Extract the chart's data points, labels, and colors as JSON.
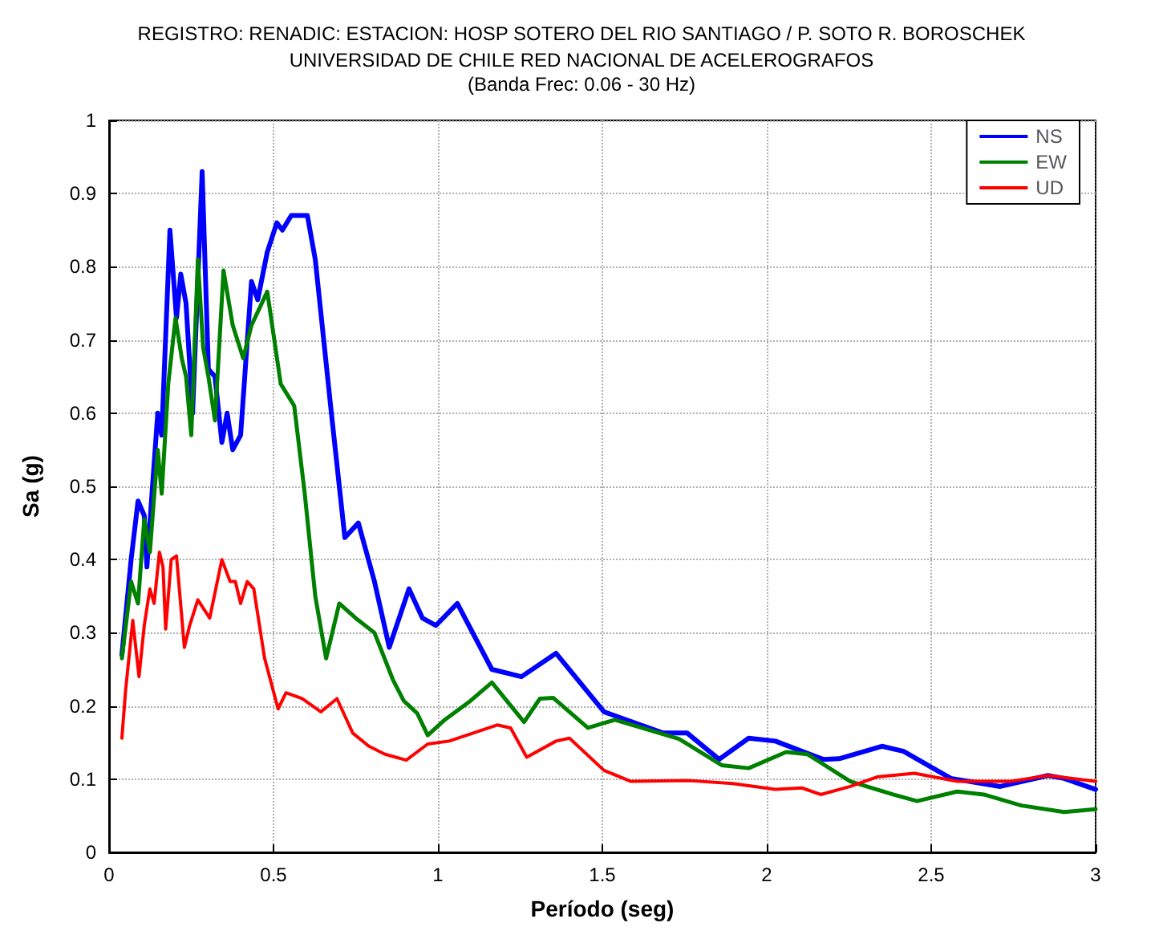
{
  "chart_data": {
    "type": "line",
    "title": "REGISTRO: RENADIC: ESTACION: HOSP SOTERO DEL RIO SANTIAGO / P. SOTO R. BOROSCHEK",
    "subtitle": "UNIVERSIDAD DE CHILE RED NACIONAL DE ACELEROGRAFOS\n(Banda Frec: 0.06 - 30 Hz)",
    "xlabel": "Período (seg)",
    "ylabel": "Sa (g)",
    "xlim": [
      0,
      3
    ],
    "xticks": [
      0,
      0.5,
      1,
      1.5,
      2,
      2.5,
      3
    ],
    "ylim": [
      0,
      1
    ],
    "yticks": [
      0,
      0.1,
      0.2,
      0.3,
      0.4,
      0.5,
      0.6,
      0.7,
      0.8,
      0.9,
      1
    ],
    "grid": true,
    "legend": "top right",
    "marker": "none",
    "line_style": "solid",
    "series": [
      {
        "name": "NS",
        "color": "#0000ff",
        "x": [
          0.039,
          0.067,
          0.088,
          0.107,
          0.115,
          0.132,
          0.148,
          0.16,
          0.185,
          0.205,
          0.218,
          0.234,
          0.254,
          0.283,
          0.302,
          0.322,
          0.343,
          0.359,
          0.376,
          0.4,
          0.433,
          0.452,
          0.481,
          0.51,
          0.527,
          0.554,
          0.603,
          0.627,
          0.676,
          0.717,
          0.758,
          0.807,
          0.852,
          0.912,
          0.953,
          0.994,
          1.059,
          1.164,
          1.254,
          1.359,
          1.505,
          1.685,
          1.758,
          1.855,
          1.945,
          2.026,
          2.172,
          2.22,
          2.35,
          2.416,
          2.56,
          2.71,
          2.855,
          2.904,
          3.0
        ],
        "values": [
          0.27,
          0.4,
          0.48,
          0.46,
          0.39,
          0.5,
          0.6,
          0.57,
          0.85,
          0.73,
          0.79,
          0.75,
          0.6,
          0.93,
          0.66,
          0.65,
          0.56,
          0.6,
          0.55,
          0.57,
          0.78,
          0.755,
          0.82,
          0.86,
          0.85,
          0.87,
          0.87,
          0.81,
          0.6,
          0.43,
          0.45,
          0.37,
          0.28,
          0.36,
          0.32,
          0.31,
          0.34,
          0.25,
          0.24,
          0.272,
          0.192,
          0.163,
          0.163,
          0.127,
          0.156,
          0.152,
          0.127,
          0.128,
          0.145,
          0.138,
          0.101,
          0.09,
          0.105,
          0.101,
          0.086
        ]
      },
      {
        "name": "EW",
        "color": "#008000",
        "x": [
          0.039,
          0.067,
          0.088,
          0.107,
          0.124,
          0.148,
          0.16,
          0.18,
          0.202,
          0.221,
          0.234,
          0.25,
          0.27,
          0.286,
          0.302,
          0.322,
          0.348,
          0.376,
          0.408,
          0.433,
          0.481,
          0.522,
          0.563,
          0.595,
          0.627,
          0.66,
          0.7,
          0.75,
          0.807,
          0.863,
          0.896,
          0.937,
          0.969,
          1.018,
          1.099,
          1.164,
          1.262,
          1.31,
          1.351,
          1.456,
          1.538,
          1.733,
          1.863,
          1.945,
          2.059,
          2.124,
          2.254,
          2.384,
          2.457,
          2.579,
          2.66,
          2.774,
          2.904,
          3.0
        ],
        "values": [
          0.265,
          0.37,
          0.34,
          0.455,
          0.41,
          0.55,
          0.49,
          0.64,
          0.73,
          0.675,
          0.65,
          0.57,
          0.81,
          0.69,
          0.65,
          0.59,
          0.795,
          0.72,
          0.675,
          0.72,
          0.766,
          0.64,
          0.61,
          0.49,
          0.35,
          0.265,
          0.34,
          0.32,
          0.3,
          0.236,
          0.207,
          0.19,
          0.16,
          0.18,
          0.207,
          0.232,
          0.178,
          0.21,
          0.211,
          0.17,
          0.181,
          0.155,
          0.119,
          0.115,
          0.137,
          0.134,
          0.097,
          0.079,
          0.07,
          0.083,
          0.079,
          0.064,
          0.055,
          0.059
        ]
      },
      {
        "name": "UD",
        "color": "#ff0000",
        "x": [
          0.039,
          0.05,
          0.072,
          0.091,
          0.107,
          0.124,
          0.137,
          0.153,
          0.164,
          0.172,
          0.189,
          0.205,
          0.229,
          0.245,
          0.27,
          0.306,
          0.343,
          0.368,
          0.384,
          0.4,
          0.42,
          0.44,
          0.473,
          0.514,
          0.538,
          0.587,
          0.644,
          0.693,
          0.741,
          0.79,
          0.839,
          0.904,
          0.969,
          1.034,
          1.18,
          1.221,
          1.27,
          1.359,
          1.4,
          1.505,
          1.587,
          1.766,
          1.896,
          2.026,
          2.107,
          2.164,
          2.254,
          2.335,
          2.449,
          2.579,
          2.742,
          2.855,
          3.0
        ],
        "values": [
          0.156,
          0.22,
          0.317,
          0.24,
          0.31,
          0.36,
          0.34,
          0.41,
          0.39,
          0.305,
          0.4,
          0.405,
          0.28,
          0.31,
          0.345,
          0.32,
          0.4,
          0.37,
          0.37,
          0.34,
          0.37,
          0.36,
          0.265,
          0.196,
          0.218,
          0.21,
          0.192,
          0.21,
          0.163,
          0.145,
          0.134,
          0.126,
          0.148,
          0.152,
          0.174,
          0.17,
          0.13,
          0.152,
          0.156,
          0.112,
          0.097,
          0.098,
          0.094,
          0.086,
          0.088,
          0.079,
          0.09,
          0.103,
          0.108,
          0.097,
          0.097,
          0.105,
          0.097
        ]
      }
    ]
  }
}
